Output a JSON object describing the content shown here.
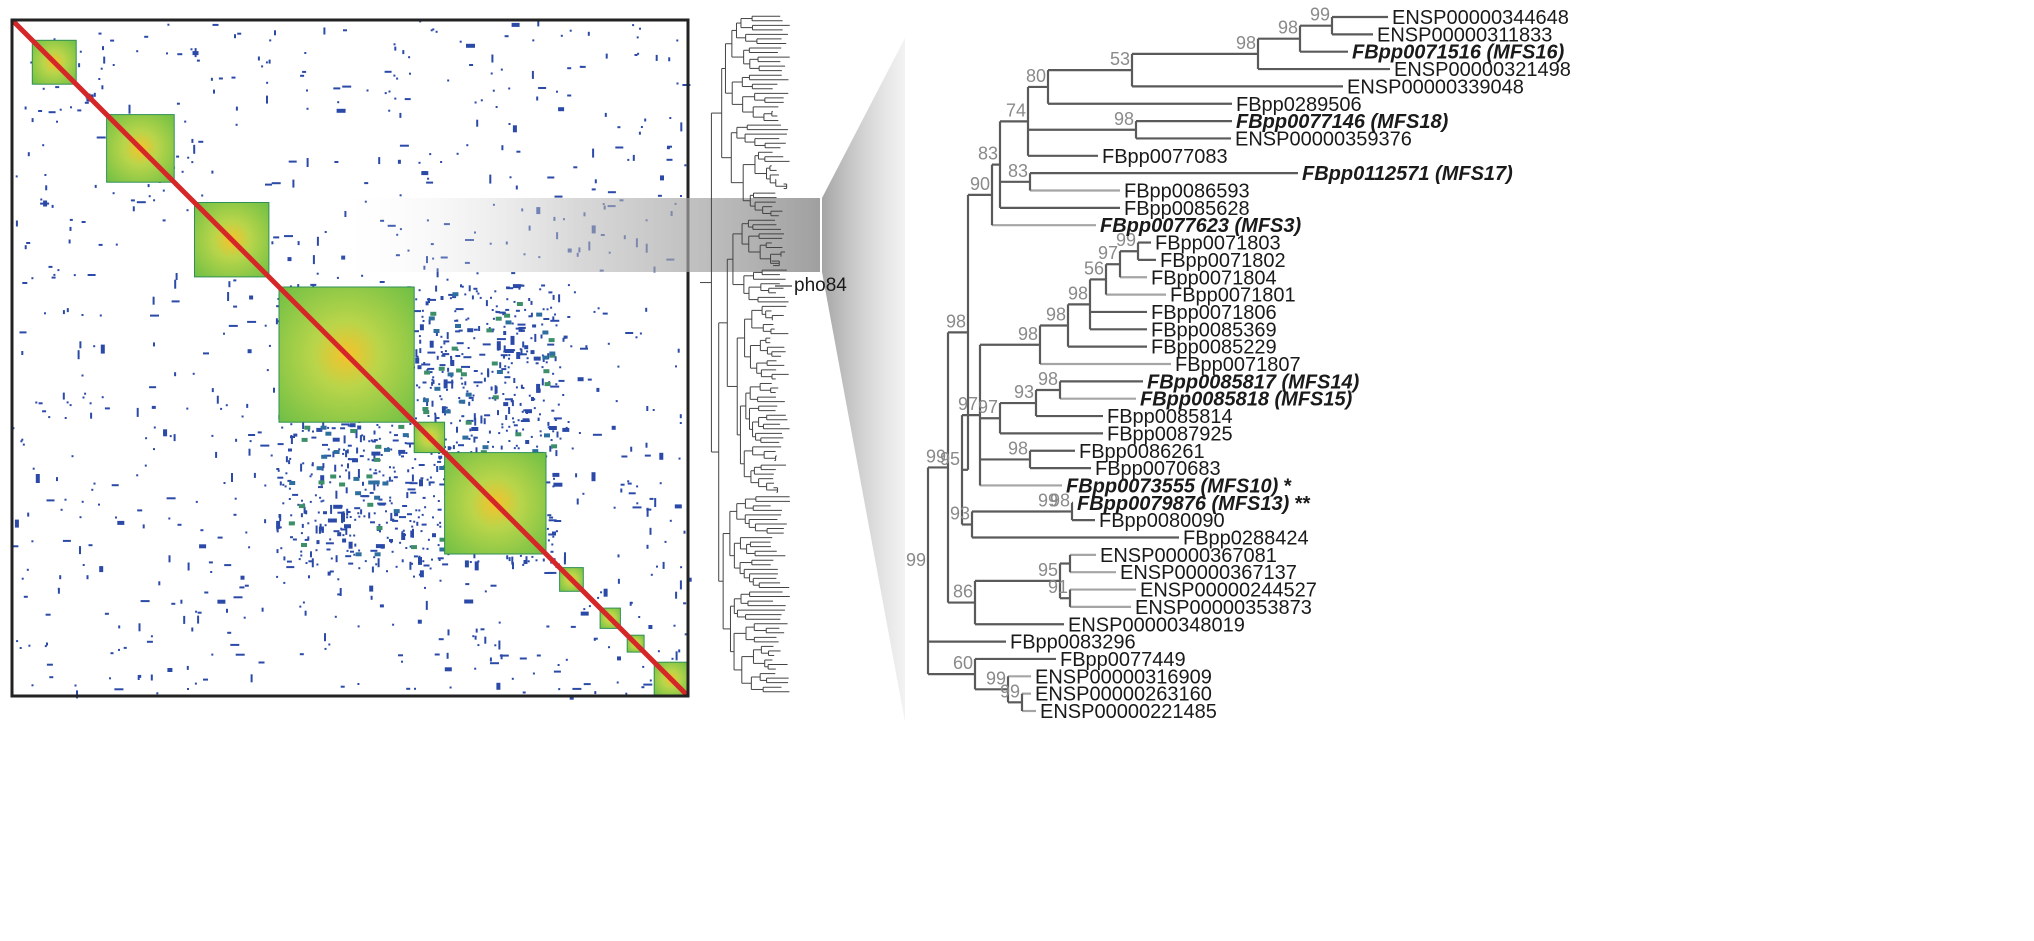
{
  "colors": {
    "low": "#2b4aa8",
    "mid": "#7cc043",
    "high": "#f6c22b",
    "diag": "#d62728",
    "frame": "#222222",
    "branch_dark": "#555555",
    "branch_light": "#999999",
    "support": "#8a8a8a"
  },
  "matrix": {
    "blocks": [
      {
        "start": 0.03,
        "end": 0.095
      },
      {
        "start": 0.14,
        "end": 0.24
      },
      {
        "start": 0.27,
        "end": 0.38
      },
      {
        "start": 0.395,
        "end": 0.595
      },
      {
        "start": 0.595,
        "end": 0.64
      },
      {
        "start": 0.64,
        "end": 0.79
      },
      {
        "start": 0.81,
        "end": 0.845
      },
      {
        "start": 0.87,
        "end": 0.9
      },
      {
        "start": 0.91,
        "end": 0.935
      },
      {
        "start": 0.95,
        "end": 1.0
      }
    ]
  },
  "overview_tree": {
    "marker_label": "pho84"
  },
  "tree": {
    "leaves": [
      {
        "label": "ENSP00000344648",
        "bold": false
      },
      {
        "label": "ENSP00000311833",
        "bold": false
      },
      {
        "label": "FBpp0071516 (MFS16)",
        "bold": true
      },
      {
        "label": "ENSP00000321498",
        "bold": false
      },
      {
        "label": "ENSP00000339048",
        "bold": false
      },
      {
        "label": "FBpp0289506",
        "bold": false
      },
      {
        "label": "FBpp0077146 (MFS18)",
        "bold": true
      },
      {
        "label": "ENSP00000359376",
        "bold": false
      },
      {
        "label": "FBpp0077083",
        "bold": false
      },
      {
        "label": "FBpp0112571 (MFS17)",
        "bold": true
      },
      {
        "label": "FBpp0086593",
        "bold": false
      },
      {
        "label": "FBpp0085628",
        "bold": false
      },
      {
        "label": "FBpp0077623 (MFS3)",
        "bold": true
      },
      {
        "label": "FBpp0071803",
        "bold": false
      },
      {
        "label": "FBpp0071802",
        "bold": false
      },
      {
        "label": "FBpp0071804",
        "bold": false
      },
      {
        "label": "FBpp0071801",
        "bold": false
      },
      {
        "label": "FBpp0071806",
        "bold": false
      },
      {
        "label": "FBpp0085369",
        "bold": false
      },
      {
        "label": "FBpp0085229",
        "bold": false
      },
      {
        "label": "FBpp0071807",
        "bold": false
      },
      {
        "label": "FBpp0085817 (MFS14)",
        "bold": true
      },
      {
        "label": "FBpp0085818 (MFS15)",
        "bold": true
      },
      {
        "label": "FBpp0085814",
        "bold": false
      },
      {
        "label": "FBpp0087925",
        "bold": false
      },
      {
        "label": "FBpp0086261",
        "bold": false
      },
      {
        "label": "FBpp0070683",
        "bold": false
      },
      {
        "label": "FBpp0073555 (MFS10)",
        "bold": true,
        "suffix": " *"
      },
      {
        "label": "FBpp0079876 (MFS13)",
        "bold": true,
        "suffix": " **"
      },
      {
        "label": "FBpp0080090",
        "bold": false
      },
      {
        "label": "FBpp0288424",
        "bold": false
      },
      {
        "label": "ENSP00000367081",
        "bold": false
      },
      {
        "label": "ENSP00000367137",
        "bold": false
      },
      {
        "label": "ENSP00000244527",
        "bold": false
      },
      {
        "label": "ENSP00000353873",
        "bold": false
      },
      {
        "label": "ENSP00000348019",
        "bold": false
      },
      {
        "label": "FBpp0083296",
        "bold": false
      },
      {
        "label": "FBpp0077449",
        "bold": false
      },
      {
        "label": "ENSP00000316909",
        "bold": false
      },
      {
        "label": "ENSP00000263160",
        "bold": false
      },
      {
        "label": "ENSP00000221485",
        "bold": false
      }
    ],
    "supports": [
      "99",
      "98",
      "98",
      "53",
      "80",
      "74",
      "98",
      "83",
      "90",
      "83",
      "99",
      "99",
      "99",
      "97",
      "56",
      "98",
      "98",
      "98",
      "98",
      "97",
      "98",
      "93",
      "99",
      "97",
      "98",
      "95",
      "98",
      "99",
      "93",
      "98",
      "99",
      "95",
      "91",
      "86",
      "60",
      "99",
      "99"
    ]
  }
}
